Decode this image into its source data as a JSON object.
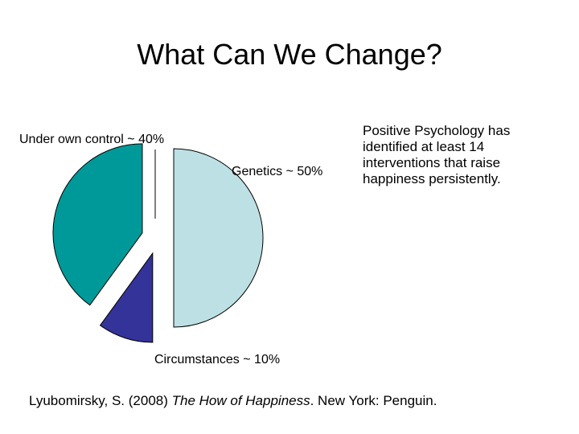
{
  "slide": {
    "title": "What Can We Change?",
    "side_note": "Positive Psychology has identified at least 14 interventions that raise happiness persistently.",
    "citation": {
      "prefix": "Lyubomirsky, S. (2008) ",
      "book_title": "The How of Happiness",
      "suffix": ". New York: Penguin."
    }
  },
  "chart_data": {
    "type": "pie",
    "title": "",
    "slices": [
      {
        "label": "Genetics ~ 50%",
        "value": 50,
        "color": "#bde0e4"
      },
      {
        "label": "Circumstances ~ 10%",
        "value": 10,
        "color": "#333399"
      },
      {
        "label": "Under own control ~ 40%",
        "value": 40,
        "color": "#009999"
      }
    ],
    "exploded": true,
    "legend": "none"
  }
}
